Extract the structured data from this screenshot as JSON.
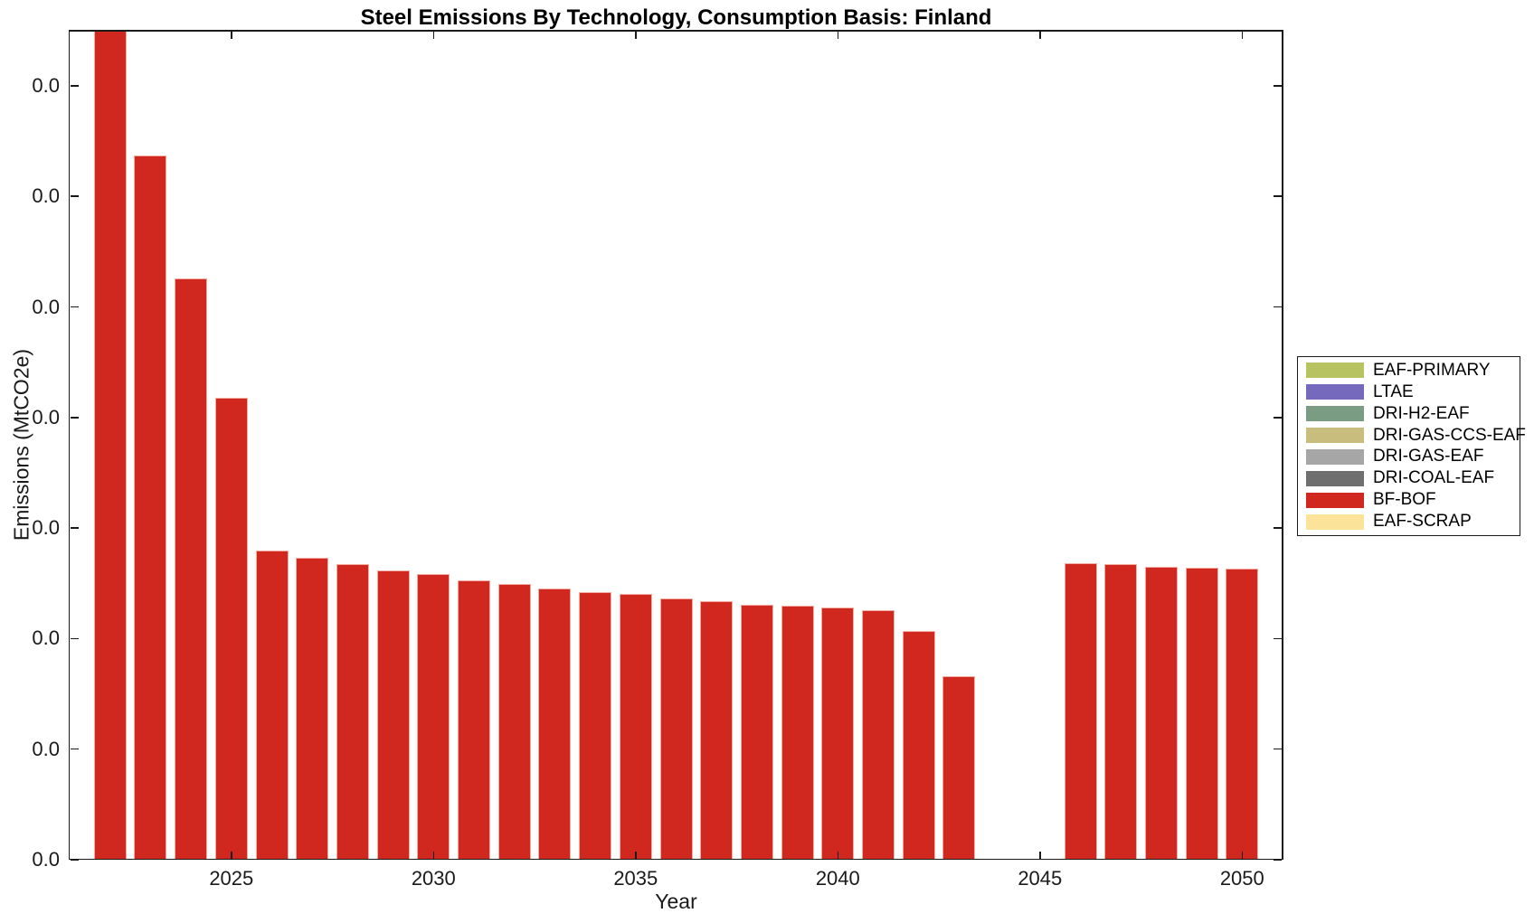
{
  "chart_data": {
    "type": "bar",
    "title": "Steel Emissions By Technology, Consumption Basis: Finland",
    "xlabel": "Year",
    "ylabel": "Emissions (MtCO2e)",
    "grid": false,
    "legend_position": "right-outside",
    "axis": {
      "xmin": 2021,
      "xmax": 2051,
      "ymin": 0,
      "ymax": 7.51,
      "y_tick_interval": 1,
      "value_unit": "y-axis tick intervals (every visible y tick label displays 0.0)"
    },
    "x_tick_labels": [
      "2025",
      "2030",
      "2035",
      "2040",
      "2045",
      "2050"
    ],
    "x_tick_years": [
      2025,
      2030,
      2035,
      2040,
      2045,
      2050
    ],
    "y_tick_labels": [
      "0.0",
      "0.0",
      "0.0",
      "0.0",
      "0.0",
      "0.0",
      "0.0",
      "0.0"
    ],
    "categories": [
      2022,
      2023,
      2024,
      2025,
      2026,
      2027,
      2028,
      2029,
      2030,
      2031,
      2032,
      2033,
      2034,
      2035,
      2036,
      2037,
      2038,
      2039,
      2040,
      2041,
      2042,
      2043,
      2044,
      2045,
      2046,
      2047,
      2048,
      2049,
      2050
    ],
    "series": [
      {
        "name": "BF-BOF",
        "color": "#d0281e",
        "values": [
          7.6,
          6.37,
          5.26,
          4.18,
          2.8,
          2.73,
          2.67,
          2.62,
          2.58,
          2.53,
          2.49,
          2.45,
          2.42,
          2.4,
          2.36,
          2.34,
          2.31,
          2.3,
          2.28,
          2.26,
          2.07,
          1.66,
          null,
          null,
          2.68,
          2.67,
          2.65,
          2.64,
          2.63
        ]
      }
    ],
    "notes": "2022 bar is clipped at the top of the axes; no bars drawn for 2044 and 2045; only BF-BOF series has visible bars",
    "legend": [
      {
        "label": "EAF-PRIMARY",
        "color": "#b6c360"
      },
      {
        "label": "LTAE",
        "color": "#7569bd"
      },
      {
        "label": "DRI-H2-EAF",
        "color": "#799c82"
      },
      {
        "label": "DRI-GAS-CCS-EAF",
        "color": "#c8bd7c"
      },
      {
        "label": "DRI-GAS-EAF",
        "color": "#a6a6a6"
      },
      {
        "label": "DRI-COAL-EAF",
        "color": "#6f6f6f"
      },
      {
        "label": "BF-BOF",
        "color": "#d0281e"
      },
      {
        "label": "EAF-SCRAP",
        "color": "#fbe39a"
      }
    ]
  }
}
